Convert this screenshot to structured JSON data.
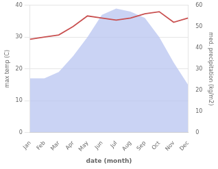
{
  "chart_data": {
    "type": "line",
    "xlabel": "date (month)",
    "ylabel": "max temp (C)",
    "y2label": "med. precipitation (kg/m2)",
    "categories": [
      "Jan",
      "Feb",
      "Mar",
      "Apr",
      "May",
      "Jun",
      "Jul",
      "Aug",
      "Sep",
      "Oct",
      "Nov",
      "Dec"
    ],
    "series": [
      {
        "type": "area",
        "color": "#b8c4f0",
        "values": [
          17,
          17,
          19,
          24,
          30,
          37,
          39,
          38,
          36,
          30,
          22,
          15
        ]
      },
      {
        "type": "line",
        "color": "#c95050",
        "axis": "y2",
        "values": [
          44,
          45,
          46,
          50,
          55,
          54,
          53,
          54,
          56,
          57,
          52,
          54
        ]
      }
    ],
    "ylim": [
      0,
      40
    ],
    "yticks": [
      0,
      10,
      20,
      30,
      40
    ],
    "y2lim": [
      0,
      60
    ],
    "y2ticks": [
      0,
      10,
      20,
      30,
      40,
      50,
      60
    ],
    "grid": true
  }
}
